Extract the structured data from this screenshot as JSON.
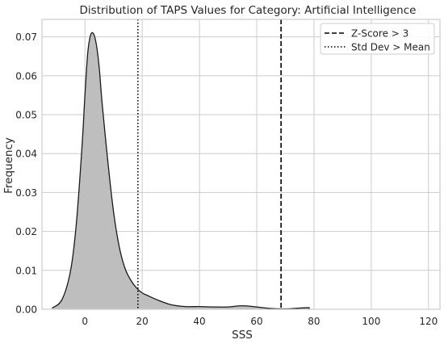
{
  "chart_data": {
    "type": "area",
    "title": "Distribution of TAPS Values for Category: Artificial Intelligence",
    "xlabel": "SSS",
    "ylabel": "Frequency",
    "xlim": [
      -15,
      124
    ],
    "ylim": [
      0,
      0.0745
    ],
    "xticks": [
      0,
      20,
      40,
      60,
      80,
      100,
      120
    ],
    "yticks": [
      0.0,
      0.01,
      0.02,
      0.03,
      0.04,
      0.05,
      0.06,
      0.07
    ],
    "xtick_labels": [
      "0",
      "20",
      "40",
      "60",
      "80",
      "100",
      "120"
    ],
    "ytick_labels": [
      "0.00",
      "0.01",
      "0.02",
      "0.03",
      "0.04",
      "0.05",
      "0.06",
      "0.07"
    ],
    "grid": true,
    "legend_position": "top-right",
    "density": {
      "x": [
        -11.5,
        -8,
        -5,
        -3,
        -1,
        0,
        1,
        2,
        3,
        4,
        5,
        6,
        8,
        10,
        12,
        14,
        16,
        18,
        20,
        22,
        25,
        30,
        35,
        40,
        45,
        50,
        55,
        60,
        65,
        70,
        75,
        78,
        82,
        86,
        90,
        95,
        100,
        105,
        109,
        113,
        117,
        121
      ],
      "y": [
        0.0003,
        0.0025,
        0.01,
        0.022,
        0.042,
        0.055,
        0.066,
        0.0705,
        0.0708,
        0.068,
        0.062,
        0.053,
        0.038,
        0.025,
        0.016,
        0.0105,
        0.0075,
        0.0055,
        0.0042,
        0.0035,
        0.0025,
        0.0012,
        0.0007,
        0.0007,
        0.0006,
        0.0006,
        0.0009,
        0.0006,
        0.0002,
        0.0001,
        0.0003,
        0.0004,
        0.0003,
        0.0001,
        0.0,
        0.0,
        0.0001,
        0.0002,
        0.0004,
        0.0003,
        0.0001,
        0.0
      ]
    },
    "reference_lines": [
      {
        "label": "Z-Score > 3",
        "x": 68.5,
        "style": "dashed"
      },
      {
        "label": "Std Dev > Mean",
        "x": 18.5,
        "style": "dotted"
      }
    ],
    "colors": {
      "fill": "#bebebe",
      "stroke": "#1a1a1a",
      "grid": "#cccccc",
      "frame": "#cccccc"
    }
  }
}
